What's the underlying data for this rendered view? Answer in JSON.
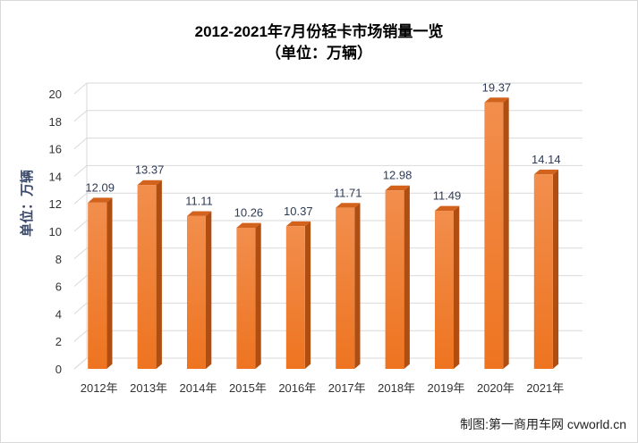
{
  "chart_data": {
    "type": "bar",
    "title": "2012-2021年7月份轻卡市场销量一览",
    "subtitle": "（单位：万辆）",
    "ylabel": "单位：万辆",
    "xlabel": "",
    "categories": [
      "2012年",
      "2013年",
      "2014年",
      "2015年",
      "2016年",
      "2017年",
      "2018年",
      "2019年",
      "2020年",
      "2021年"
    ],
    "values": [
      12.09,
      13.37,
      11.11,
      10.26,
      10.37,
      11.71,
      12.98,
      11.49,
      19.37,
      14.14
    ],
    "value_labels": [
      "12.09",
      "13.37",
      "11.11",
      "10.26",
      "10.37",
      "11.71",
      "12.98",
      "11.49",
      "19.37",
      "14.14"
    ],
    "ylim": [
      0,
      20
    ],
    "yticks": [
      "0",
      "2",
      "4",
      "6",
      "8",
      "10",
      "12",
      "14",
      "16",
      "18",
      "20"
    ],
    "grid": true,
    "bar_color": "#f07a28",
    "grid_color": "#d9d9d9"
  },
  "credit": "制图:第一商用车网 cvworld.cn"
}
